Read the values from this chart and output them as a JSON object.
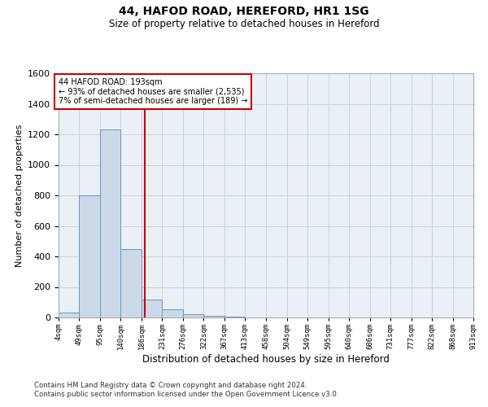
{
  "title1": "44, HAFOD ROAD, HEREFORD, HR1 1SG",
  "title2": "Size of property relative to detached houses in Hereford",
  "xlabel": "Distribution of detached houses by size in Hereford",
  "ylabel": "Number of detached properties",
  "bin_edges": [
    4,
    49,
    95,
    140,
    186,
    231,
    276,
    322,
    367,
    413,
    458,
    504,
    549,
    595,
    640,
    686,
    731,
    777,
    822,
    868,
    913
  ],
  "bar_heights": [
    30,
    800,
    1230,
    450,
    120,
    55,
    20,
    10,
    5,
    0,
    0,
    0,
    0,
    0,
    0,
    0,
    0,
    0,
    0,
    0
  ],
  "bar_color": "#ccd9e8",
  "bar_edge_color": "#6699bb",
  "grid_color": "#c8d4de",
  "bg_color": "#eaf0f6",
  "red_line_x": 193,
  "red_line_color": "#cc0000",
  "annotation_text": "44 HAFOD ROAD: 193sqm\n← 93% of detached houses are smaller (2,535)\n7% of semi-detached houses are larger (189) →",
  "ylim": [
    0,
    1600
  ],
  "yticks": [
    0,
    200,
    400,
    600,
    800,
    1000,
    1200,
    1400,
    1600
  ],
  "tick_labels": [
    "4sqm",
    "49sqm",
    "95sqm",
    "140sqm",
    "186sqm",
    "231sqm",
    "276sqm",
    "322sqm",
    "367sqm",
    "413sqm",
    "458sqm",
    "504sqm",
    "549sqm",
    "595sqm",
    "640sqm",
    "686sqm",
    "731sqm",
    "777sqm",
    "822sqm",
    "868sqm",
    "913sqm"
  ],
  "footer1": "Contains HM Land Registry data © Crown copyright and database right 2024.",
  "footer2": "Contains public sector information licensed under the Open Government Licence v3.0."
}
